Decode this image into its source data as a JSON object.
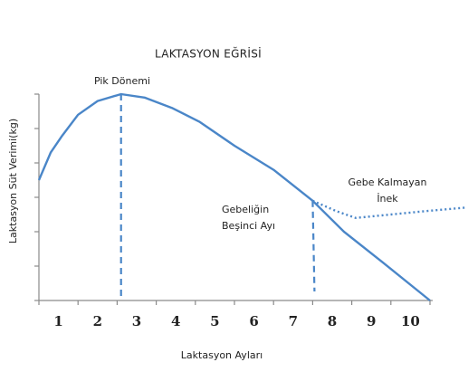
{
  "chart_data": {
    "type": "line",
    "title": "LAKTASYON EĞRİSİ",
    "xlabel": "Laktasyon Ayları",
    "ylabel": "Laktasyon Süt Verimi(kg)",
    "xlim": [
      0,
      10
    ],
    "ylim": [
      0,
      6
    ],
    "xticks": [
      {
        "value": 0.5,
        "label": "1"
      },
      {
        "value": 1.5,
        "label": "2"
      },
      {
        "value": 2.5,
        "label": "3"
      },
      {
        "value": 3.5,
        "label": "4"
      },
      {
        "value": 4.5,
        "label": "5"
      },
      {
        "value": 5.5,
        "label": "6"
      },
      {
        "value": 6.5,
        "label": "7"
      },
      {
        "value": 7.5,
        "label": "8"
      },
      {
        "value": 8.5,
        "label": "9"
      },
      {
        "value": 9.5,
        "label": "10"
      }
    ],
    "xminorticks": [
      0,
      1,
      2,
      3,
      4,
      5,
      6,
      7,
      8,
      9,
      10
    ],
    "yticks": [
      0,
      1,
      2,
      3,
      4,
      5,
      6
    ],
    "series": [
      {
        "color": "#4a86c8",
        "style": "solid",
        "x": [
          0,
          0.3,
          0.6,
          1,
          1.5,
          2.1,
          2.7,
          3.4,
          4.1,
          5,
          6,
          7,
          7.8,
          8.8,
          10
        ],
        "values": [
          3.5,
          4.3,
          4.8,
          5.4,
          5.8,
          6,
          5.9,
          5.6,
          5.2,
          4.5,
          3.8,
          2.9,
          2,
          1.1,
          0
        ]
      },
      {
        "color": "#4a86c8",
        "style": "dotted",
        "x": [
          7,
          7.6,
          8.1,
          9,
          9.9,
          10.9
        ],
        "values": [
          2.9,
          2.6,
          2.4,
          2.5,
          2.6,
          2.7
        ]
      }
    ],
    "annotations": [
      {
        "text": [
          "Pik Dönemi"
        ],
        "x": 2.1,
        "y": 6
      },
      {
        "text": [
          "Gebeliğin",
          "Beşinci Ayı"
        ],
        "x": 7,
        "y": 2.9
      },
      {
        "text": [
          "Gebe Kalmayan",
          "İnek"
        ]
      }
    ]
  }
}
